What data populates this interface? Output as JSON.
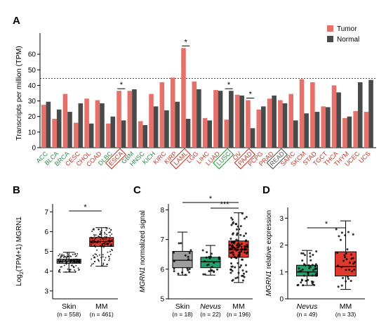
{
  "colors": {
    "tumor": "#e5716a",
    "normal": "#4a4a4a",
    "skin": "#9e9e9e",
    "nevus": "#24a06b",
    "mm": "#e03a2e",
    "cancer_label": "#2e8b4a",
    "box_red": "#c0392b",
    "box_green": "#2f9a3a",
    "box_gray": "#555555"
  },
  "chart_data": [
    {
      "id": "A",
      "panel_label": "A",
      "type": "bar",
      "ylabel": "Transcripts per million (TPM)",
      "ylim": [
        0,
        70
      ],
      "yticks": [
        0,
        10,
        20,
        30,
        40,
        50,
        60
      ],
      "threshold": 44.5,
      "legend": [
        {
          "name": "Tumor",
          "color_key": "tumor"
        },
        {
          "name": "Normal",
          "color_key": "normal"
        }
      ],
      "categories": [
        "ACC",
        "BLCA",
        "BRCA",
        "CESC",
        "CHOL",
        "COAD",
        "DLBC",
        "ESCA",
        "GBM",
        "HNSC",
        "KICH",
        "KIRC",
        "KIRP",
        "LAML",
        "LGG",
        "LIHC",
        "LUAD",
        "LUSC",
        "OV",
        "PAAD",
        "PCPG",
        "PRAD",
        "READ",
        "SARC",
        "SKCM",
        "STAD",
        "TGCT",
        "THCA",
        "THYM",
        "UCEC",
        "UCS"
      ],
      "label_colors": [
        "cancer_label",
        "cancer_label",
        "cancer_label",
        "box_red",
        "box_red",
        "box_red",
        "cancer_label",
        "box_red",
        "cancer_label",
        "cancer_label",
        "cancer_label",
        "box_red",
        "box_red",
        "box_red",
        "box_red",
        "box_red",
        "box_red",
        "cancer_label",
        "box_red",
        "box_red",
        "box_red",
        "box_red",
        "box_gray",
        "box_red",
        "box_red",
        "box_red",
        "box_red",
        "box_red",
        "box_red",
        "box_red",
        "box_red"
      ],
      "boxed": [
        "ESCA",
        "LAML",
        "LUSC",
        "PAAD",
        "READ"
      ],
      "significant": [
        "ESCA",
        "LAML",
        "LUSC",
        "PAAD"
      ],
      "series": [
        {
          "name": "Tumor",
          "values": [
            27.5,
            18.5,
            34.5,
            16.0,
            31.5,
            30.5,
            15.5,
            36.5,
            36.5,
            17.0,
            34.5,
            42.0,
            45.0,
            64.0,
            42.5,
            19.0,
            37.0,
            18.0,
            34.0,
            30.5,
            24.5,
            31.5,
            30.5,
            34.5,
            44.0,
            42.0,
            26.5,
            40.0,
            19.0,
            23.5,
            23.0
          ]
        },
        {
          "name": "Normal",
          "values": [
            29.5,
            24.5,
            23.0,
            28.5,
            15.5,
            28.5,
            20.0,
            17.5,
            37.5,
            14.5,
            26.5,
            24.0,
            29.5,
            18.5,
            37.5,
            17.5,
            36.5,
            36.5,
            33.5,
            12.5,
            26.5,
            33.5,
            28.5,
            17.5,
            22.0,
            23.0,
            26.0,
            35.5,
            20.0,
            42.0,
            43.5
          ]
        }
      ],
      "star": "*"
    },
    {
      "id": "B",
      "panel_label": "B",
      "type": "box",
      "ylabel": "Log2(TPM+1) MGRN1",
      "ylabel_base": "Log",
      "ylabel_sub": "2",
      "ylabel_rest": "(TPM+1) MGRN1",
      "ylim": [
        2.6,
        7.4
      ],
      "yticks": [
        3,
        4,
        5,
        6,
        7
      ],
      "groups": [
        {
          "name": "Skin",
          "n": "(n = 558)",
          "color_key": "skin",
          "q1": 4.4,
          "median": 4.5,
          "q3": 4.6,
          "lo": 3.95,
          "hi": 4.95
        },
        {
          "name": "MM",
          "n": "(n = 461)",
          "color_key": "mm",
          "q1": 5.25,
          "median": 5.5,
          "q3": 5.7,
          "lo": 4.25,
          "hi": 6.2
        }
      ],
      "comparisons": [
        {
          "from": 0,
          "to": 1,
          "label": "*"
        }
      ]
    },
    {
      "id": "C",
      "panel_label": "C",
      "type": "box",
      "ylabel": "MGRN1 normalized signal",
      "ylabel_gene": "MGRN1",
      "ylabel_rest": " normalized signal",
      "ylim": [
        5,
        8.2
      ],
      "yticks": [
        5,
        6,
        7,
        8
      ],
      "groups": [
        {
          "name": "Skin",
          "n": "(n = 18)",
          "color_key": "skin",
          "q1": 6.05,
          "median": 6.3,
          "q3": 6.6,
          "lo": 5.8,
          "hi": 7.25
        },
        {
          "name": "Nevus",
          "n": "(n = 22)",
          "color_key": "nevus",
          "q1": 6.05,
          "median": 6.25,
          "q3": 6.4,
          "lo": 5.8,
          "hi": 6.8,
          "italic": true
        },
        {
          "name": "MM",
          "n": "(n = 196)",
          "color_key": "mm",
          "q1": 6.4,
          "median": 6.65,
          "q3": 6.95,
          "lo": 5.55,
          "hi": 7.9
        }
      ],
      "comparisons": [
        {
          "from": 0,
          "to": 2,
          "label": "*"
        },
        {
          "from": 1,
          "to": 2,
          "label": "***"
        }
      ]
    },
    {
      "id": "D",
      "panel_label": "D",
      "type": "box",
      "ylabel": "MGRN1 relative expression",
      "ylabel_gene": "MGRN1",
      "ylabel_rest": " relative expression",
      "ylim": [
        0,
        3.4
      ],
      "yticks": [
        0,
        1,
        2,
        3
      ],
      "groups": [
        {
          "name": "Nevus",
          "n": "(n = 49)",
          "color_key": "nevus",
          "q1": 0.85,
          "median": 1.0,
          "q3": 1.25,
          "lo": 0.5,
          "hi": 1.8,
          "italic": true
        },
        {
          "name": "MM",
          "n": "(n = 33)",
          "color_key": "mm",
          "q1": 0.85,
          "median": 1.2,
          "q3": 1.75,
          "lo": 0.35,
          "hi": 2.9
        }
      ],
      "comparisons": [
        {
          "from": 0,
          "to": 1,
          "label": "*"
        }
      ]
    }
  ]
}
